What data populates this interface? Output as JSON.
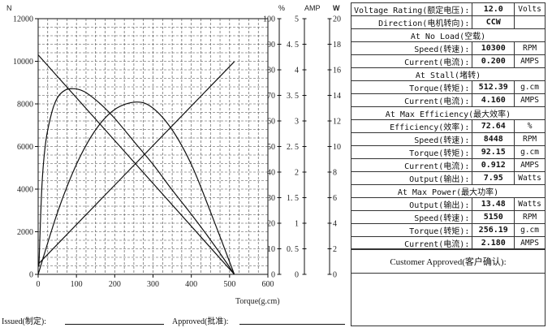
{
  "chart_data": {
    "type": "line",
    "xlabel": "Torque(g.cm)",
    "x_ticks": [
      0,
      100,
      200,
      300,
      400,
      500,
      600
    ],
    "xlim": [
      0,
      600
    ],
    "grid": true,
    "axes": {
      "speed": {
        "unit": "N",
        "ticks": [
          0,
          2000,
          4000,
          6000,
          8000,
          10000,
          12000
        ],
        "range": [
          0,
          12000
        ]
      },
      "efficiency": {
        "unit": "%",
        "ticks": [
          0,
          10,
          20,
          30,
          40,
          50,
          60,
          70,
          80,
          90,
          100
        ],
        "range": [
          0,
          100
        ]
      },
      "current": {
        "unit": "AMP",
        "ticks": [
          "0",
          "0. 5",
          "1",
          "1. 5",
          "2",
          "2. 5",
          "3",
          "3. 5",
          "4",
          "4. 5",
          "5"
        ],
        "range": [
          0,
          5
        ]
      },
      "power": {
        "unit": "W",
        "ticks": [
          0,
          2,
          4,
          6,
          8,
          10,
          12,
          14,
          16,
          18,
          20
        ],
        "range": [
          0,
          20
        ]
      }
    },
    "series": [
      {
        "axis": "speed",
        "points": [
          [
            0,
            10300
          ],
          [
            512.39,
            0
          ]
        ]
      },
      {
        "axis": "current",
        "points": [
          [
            0,
            0.2
          ],
          [
            512.39,
            4.16
          ]
        ]
      },
      {
        "axis": "efficiency",
        "points": [
          [
            2,
            3
          ],
          [
            10,
            35
          ],
          [
            20,
            52
          ],
          [
            35,
            63
          ],
          [
            50,
            69
          ],
          [
            70,
            72
          ],
          [
            92,
            72.6
          ],
          [
            120,
            71.5
          ],
          [
            160,
            67
          ],
          [
            200,
            61
          ],
          [
            250,
            52
          ],
          [
            300,
            43
          ],
          [
            350,
            33
          ],
          [
            400,
            23.5
          ],
          [
            450,
            13.5
          ],
          [
            490,
            5
          ],
          [
            512,
            0
          ]
        ]
      },
      {
        "axis": "power",
        "points": [
          [
            0,
            0
          ],
          [
            50,
            4.8
          ],
          [
            100,
            8.6
          ],
          [
            150,
            11.3
          ],
          [
            200,
            12.9
          ],
          [
            256.19,
            13.48
          ],
          [
            300,
            13.0
          ],
          [
            350,
            11.3
          ],
          [
            400,
            8.6
          ],
          [
            450,
            4.9
          ],
          [
            512.39,
            0
          ]
        ]
      }
    ]
  },
  "spec": {
    "voltage": {
      "label": "Voltage Rating(额定电压):",
      "value": "12.0",
      "unit": "Volts"
    },
    "direction": {
      "label": "Direction(电机转向):",
      "value": "CCW"
    },
    "no_load": {
      "title": "At No Load(空载)",
      "speed": {
        "label": "Speed(转速):",
        "value": "10300",
        "unit": "RPM"
      },
      "current": {
        "label": "Current(电流):",
        "value": "0.200",
        "unit": "AMPS"
      }
    },
    "stall": {
      "title": "At Stall(堵转)",
      "torque": {
        "label": "Torque(转矩):",
        "value": "512.39",
        "unit": "g.cm"
      },
      "current": {
        "label": "Current(电流):",
        "value": "4.160",
        "unit": "AMPS"
      }
    },
    "max_eff": {
      "title": "At Max Efficiency(最大效率)",
      "efficiency": {
        "label": "Efficiency(效率):",
        "value": "72.64",
        "unit": "%"
      },
      "speed": {
        "label": "Speed(转速):",
        "value": "8448",
        "unit": "RPM"
      },
      "torque": {
        "label": "Torque(转矩):",
        "value": "92.15",
        "unit": "g.cm"
      },
      "current": {
        "label": "Current(电流):",
        "value": "0.912",
        "unit": "AMPS"
      },
      "output": {
        "label": "Output(输出):",
        "value": "7.95",
        "unit": "Watts"
      }
    },
    "max_power": {
      "title": "At Max Power(最大功率)",
      "output": {
        "label": "Output(输出):",
        "value": "13.48",
        "unit": "Watts"
      },
      "speed": {
        "label": "Speed(转速):",
        "value": "5150",
        "unit": "RPM"
      },
      "torque": {
        "label": "Torque(转矩):",
        "value": "256.19",
        "unit": "g.cm"
      },
      "current": {
        "label": "Current(电流):",
        "value": "2.180",
        "unit": "AMPS"
      }
    }
  },
  "customer": {
    "title": "Customer Approved(客户确认):"
  },
  "footer": {
    "issued": "Issued(制定):",
    "approved": "Approved(批准):"
  }
}
